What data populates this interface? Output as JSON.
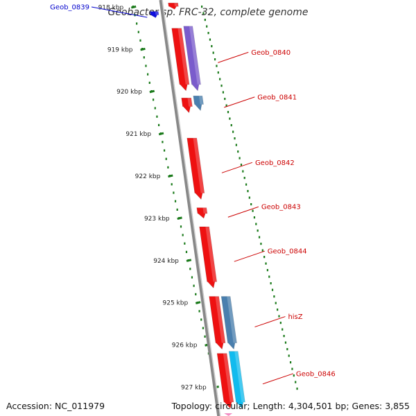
{
  "title": "Geobacter sp. FRC-32, complete genome",
  "accession": "Accession: NC_011979",
  "summary": "Topology: circular; Length: 4,304,501 bp; Genes: 3,855",
  "ruler": {
    "color": "#1a7a1a",
    "ticks": [
      "918 kbp",
      "919 kbp",
      "920 kbp",
      "921 kbp",
      "922 kbp",
      "923 kbp",
      "924 kbp",
      "925 kbp",
      "926 kbp",
      "927 kbp"
    ]
  },
  "colors": {
    "red": "#ee1111",
    "purple": "#7a5ccc",
    "steel": "#4a7fae",
    "cyan": "#11bbee",
    "blue": "#1010dd",
    "backbone": "#888888",
    "label_red": "#cc0000",
    "label_blue": "#0000cc"
  },
  "genes": [
    {
      "id": "g0839",
      "label": "Geob_0839",
      "color": "blue",
      "track": "outer",
      "start_kbp": 918.1,
      "end_kbp": 918.25
    },
    {
      "id": "g0839b",
      "label": "",
      "color": "red",
      "track": "inner",
      "start_kbp": 917.9,
      "end_kbp": 918.05
    },
    {
      "id": "g0840a",
      "label": "",
      "color": "red",
      "track": "inner",
      "start_kbp": 918.5,
      "end_kbp": 919.98
    },
    {
      "id": "g0840",
      "label": "Geob_0840",
      "color": "purple",
      "track": "mid",
      "start_kbp": 918.45,
      "end_kbp": 919.98
    },
    {
      "id": "g0841a",
      "label": "",
      "color": "red",
      "track": "inner",
      "start_kbp": 920.15,
      "end_kbp": 920.5
    },
    {
      "id": "g0841",
      "label": "Geob_0841",
      "color": "steel",
      "track": "mid",
      "start_kbp": 920.1,
      "end_kbp": 920.45
    },
    {
      "id": "g0842",
      "label": "Geob_0842",
      "color": "red",
      "track": "inner",
      "start_kbp": 921.1,
      "end_kbp": 922.55
    },
    {
      "id": "g0843",
      "label": "Geob_0843",
      "color": "red",
      "track": "inner",
      "start_kbp": 922.75,
      "end_kbp": 923.0
    },
    {
      "id": "g0844",
      "label": "Geob_0844",
      "color": "red",
      "track": "inner",
      "start_kbp": 923.2,
      "end_kbp": 924.65
    },
    {
      "id": "g0845a",
      "label": "",
      "color": "red",
      "track": "inner",
      "start_kbp": 924.85,
      "end_kbp": 926.1
    },
    {
      "id": "hisZ",
      "label": "hisZ",
      "color": "steel",
      "track": "mid",
      "start_kbp": 924.85,
      "end_kbp": 926.1
    },
    {
      "id": "g0846a",
      "label": "",
      "color": "red",
      "track": "inner",
      "start_kbp": 926.2,
      "end_kbp": 927.5
    },
    {
      "id": "g0846",
      "label": "Geob_0846",
      "color": "cyan",
      "track": "mid",
      "start_kbp": 926.15,
      "end_kbp": 927.5
    }
  ]
}
